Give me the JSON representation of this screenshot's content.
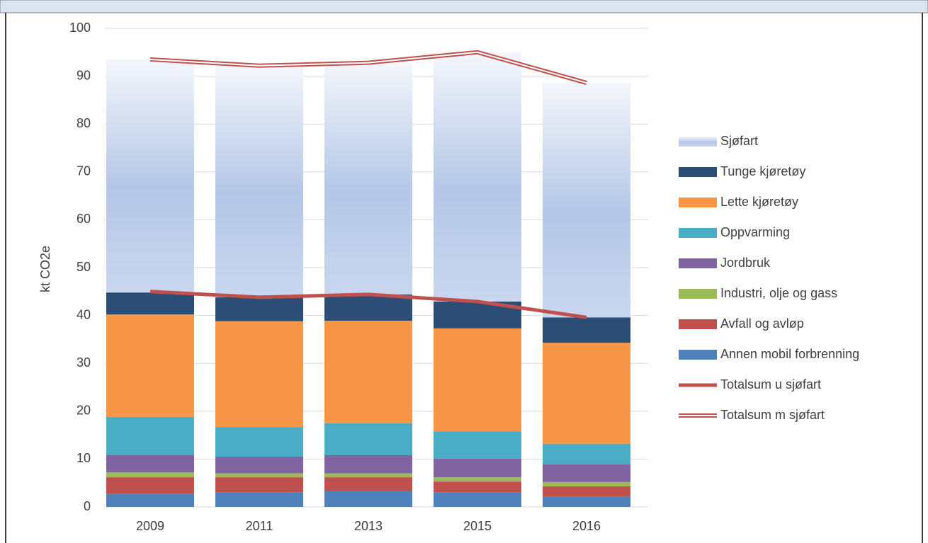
{
  "chart_data": {
    "type": "bar",
    "stacked": true,
    "y_label": "kt CO2e",
    "categories": [
      "2009",
      "2011",
      "2013",
      "2015",
      "2016"
    ],
    "ylim": [
      0,
      100
    ],
    "yticks": [
      0,
      10,
      20,
      30,
      40,
      50,
      60,
      70,
      80,
      90,
      100
    ],
    "grid": true,
    "legend": "right",
    "series": [
      {
        "name": "Annen mobil forbrenning",
        "color": "#4f81bd",
        "values": [
          2.7,
          3.0,
          3.4,
          3.0,
          2.1
        ]
      },
      {
        "name": "Avfall og avløp",
        "color": "#c0504d",
        "values": [
          3.5,
          3.2,
          2.8,
          2.3,
          2.2
        ]
      },
      {
        "name": "Industri, olje og gass",
        "color": "#9bbb59",
        "values": [
          1.0,
          0.8,
          0.8,
          0.9,
          0.9
        ]
      },
      {
        "name": "Jordbruk",
        "color": "#8064a2",
        "values": [
          3.7,
          3.5,
          3.8,
          3.9,
          3.7
        ]
      },
      {
        "name": "Oppvarming",
        "color": "#4bacc6",
        "values": [
          7.9,
          6.2,
          6.7,
          5.7,
          4.3
        ]
      },
      {
        "name": "Lette kjøretøy",
        "color": "#f79646",
        "values": [
          21.4,
          22.1,
          21.4,
          21.5,
          21.1
        ]
      },
      {
        "name": "Tunge kjøretøy",
        "color": "#2c4d75",
        "values": [
          4.6,
          5.0,
          5.5,
          5.6,
          5.3
        ]
      },
      {
        "name": "Sjøfart",
        "color": "#b4c7e7",
        "gradient": true,
        "values": [
          48.7,
          48.5,
          48.4,
          52.1,
          49.0
        ]
      },
      {
        "name": "Totalsum u sjøfart",
        "type": "line",
        "color": "#c0504d",
        "values": [
          45.0,
          43.8,
          44.4,
          42.9,
          39.6
        ]
      },
      {
        "name": "Totalsum m sjøfart",
        "type": "line",
        "style": "double",
        "color": "#c0504d",
        "values": [
          93.5,
          92.2,
          92.8,
          95.0,
          88.6
        ]
      }
    ]
  }
}
